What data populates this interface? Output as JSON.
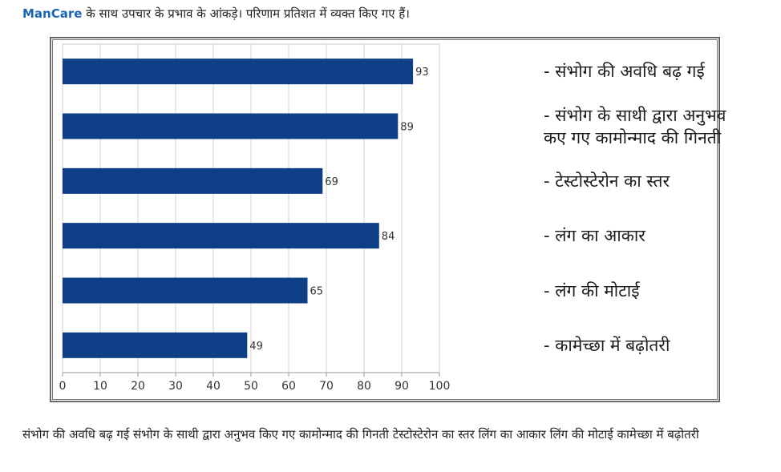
{
  "header": {
    "brand": "ManCare",
    "text": " के साथ उपचार के प्रभाव के आंकड़े। परिणाम प्रतिशत में व्यक्त किए गए हैं।"
  },
  "chart_data": {
    "type": "bar",
    "orientation": "horizontal",
    "categories": [
      "- संभोग की अवधि बढ़ गई",
      "- संभोग के साथी द्वारा अनुभव\n  कए गए कामोन्माद की गिनती",
      "- टेस्टोस्टेरोन का स्तर",
      "- लंग का आकार",
      "- लंग की मोटाई",
      "- कामेच्छा में बढ़ोतरी"
    ],
    "values": [
      93,
      89,
      69,
      84,
      65,
      49
    ],
    "value_labels": [
      "93",
      "89",
      "69",
      "84",
      "65",
      "49"
    ],
    "xlim": [
      0,
      100
    ],
    "x_ticks": [
      "0",
      "10",
      "20",
      "30",
      "40",
      "50",
      "60",
      "70",
      "80",
      "90",
      "100"
    ],
    "grid": true,
    "legend_position": "right",
    "bar_color": "#0e3f86"
  },
  "footer": {
    "text": "संभोग की अवधि बढ़ गई संभोग के साथी द्वारा अनुभव किए गए कामोन्माद की गिनती टेस्टोस्टेरोन का स्तर लिंग का आकार लिंग की मोटाई कामेच्छा में बढ़ोतरी"
  }
}
